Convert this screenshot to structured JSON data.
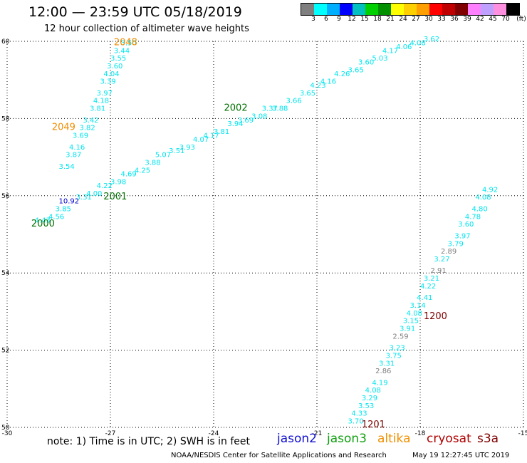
{
  "header": {
    "title": "12:00 — 23:59 UTC 05/18/2019",
    "subtitle": "12 hour collection of altimeter wave heights"
  },
  "legend": {
    "colors": [
      "#7f7f7f",
      "#00ffff",
      "#00b0ff",
      "#0000ff",
      "#00c0c0",
      "#00d000",
      "#009000",
      "#ffff00",
      "#ffd000",
      "#ffa000",
      "#ff0000",
      "#c00000",
      "#800000",
      "#ff80ff",
      "#c0a0ff",
      "#ff90e0",
      "#000000"
    ],
    "labels": [
      "3",
      "6",
      "9",
      "12",
      "15",
      "18",
      "21",
      "24",
      "27",
      "30",
      "33",
      "36",
      "39",
      "42",
      "45",
      "70",
      "(ft)"
    ]
  },
  "map": {
    "lon_range": [
      -30,
      -15
    ],
    "lat_range": [
      50,
      60
    ],
    "lon_ticks": [
      "-30",
      "-27",
      "-24",
      "-21",
      "-18",
      "-15"
    ],
    "lat_ticks": [
      "50",
      "52",
      "54",
      "56",
      "58",
      "60"
    ],
    "tracks": [
      {
        "color": "#00e5ee",
        "points": [
          {
            "lon": -26.7,
            "lat": 59.9,
            "v": "3.50"
          },
          {
            "lon": -26.9,
            "lat": 59.7,
            "v": "3.44"
          },
          {
            "lon": -27.0,
            "lat": 59.5,
            "v": "3.55"
          },
          {
            "lon": -27.1,
            "lat": 59.3,
            "v": "3.60"
          },
          {
            "lon": -27.2,
            "lat": 59.1,
            "v": "4.04"
          },
          {
            "lon": -27.3,
            "lat": 58.9,
            "v": "3.39"
          },
          {
            "lon": -27.4,
            "lat": 58.6,
            "v": "3.97"
          },
          {
            "lon": -27.5,
            "lat": 58.4,
            "v": "4.18"
          },
          {
            "lon": -27.6,
            "lat": 58.2,
            "v": "3.81"
          },
          {
            "lon": -27.8,
            "lat": 57.9,
            "v": "3.42"
          },
          {
            "lon": -27.9,
            "lat": 57.7,
            "v": "3.82"
          },
          {
            "lon": -28.1,
            "lat": 57.5,
            "v": "3.69"
          },
          {
            "lon": -28.2,
            "lat": 57.2,
            "v": "4.16"
          },
          {
            "lon": -28.3,
            "lat": 57.0,
            "v": "3.87"
          },
          {
            "lon": -28.5,
            "lat": 56.7,
            "v": "3.54"
          }
        ]
      },
      {
        "color": "#00e5ee",
        "points": [
          {
            "lon": -29.2,
            "lat": 55.3,
            "v": "4.43"
          },
          {
            "lon": -28.8,
            "lat": 55.4,
            "v": "4.56"
          },
          {
            "lon": -28.6,
            "lat": 55.6,
            "v": "3.85"
          },
          {
            "lon": -28.0,
            "lat": 55.9,
            "v": "3.31"
          },
          {
            "lon": -27.7,
            "lat": 56.0,
            "v": "4.00"
          },
          {
            "lon": -27.4,
            "lat": 56.2,
            "v": "4.22"
          },
          {
            "lon": -27.0,
            "lat": 56.3,
            "v": "3.98"
          },
          {
            "lon": -26.7,
            "lat": 56.5,
            "v": "4.69"
          },
          {
            "lon": -26.3,
            "lat": 56.6,
            "v": "4.25"
          },
          {
            "lon": -26.0,
            "lat": 56.8,
            "v": "3.88"
          },
          {
            "lon": -25.7,
            "lat": 57.0,
            "v": "5.07"
          },
          {
            "lon": -25.3,
            "lat": 57.1,
            "v": "3.51"
          },
          {
            "lon": -25.0,
            "lat": 57.2,
            "v": "3.93"
          },
          {
            "lon": -24.6,
            "lat": 57.4,
            "v": "4.07"
          },
          {
            "lon": -24.3,
            "lat": 57.5,
            "v": "4.17"
          },
          {
            "lon": -24.0,
            "lat": 57.6,
            "v": "3.81"
          },
          {
            "lon": -23.6,
            "lat": 57.8,
            "v": "3.94"
          },
          {
            "lon": -23.3,
            "lat": 57.9,
            "v": "3.69"
          },
          {
            "lon": -22.9,
            "lat": 58.0,
            "v": "3.08"
          },
          {
            "lon": -22.6,
            "lat": 58.2,
            "v": "3.37"
          },
          {
            "lon": -22.3,
            "lat": 58.2,
            "v": "3.88"
          },
          {
            "lon": -21.9,
            "lat": 58.4,
            "v": "3.66"
          },
          {
            "lon": -21.5,
            "lat": 58.6,
            "v": "3.65"
          },
          {
            "lon": -21.2,
            "lat": 58.8,
            "v": "4.23"
          },
          {
            "lon": -20.9,
            "lat": 58.9,
            "v": "4.16"
          },
          {
            "lon": -20.5,
            "lat": 59.1,
            "v": "4.26"
          },
          {
            "lon": -20.1,
            "lat": 59.2,
            "v": "3.65"
          },
          {
            "lon": -19.8,
            "lat": 59.4,
            "v": "3.60"
          },
          {
            "lon": -19.4,
            "lat": 59.5,
            "v": "5.03"
          },
          {
            "lon": -19.1,
            "lat": 59.7,
            "v": "4.17"
          },
          {
            "lon": -18.7,
            "lat": 59.8,
            "v": "4.06"
          },
          {
            "lon": -18.3,
            "lat": 59.9,
            "v": "4.08"
          },
          {
            "lon": -17.9,
            "lat": 60.0,
            "v": "3.62"
          }
        ]
      },
      {
        "color": "#00e5ee",
        "points": [
          {
            "lon": -16.2,
            "lat": 56.1,
            "v": "4.92"
          },
          {
            "lon": -16.4,
            "lat": 55.9,
            "v": "4.08"
          },
          {
            "lon": -16.5,
            "lat": 55.6,
            "v": "4.80"
          },
          {
            "lon": -16.7,
            "lat": 55.4,
            "v": "4.78"
          },
          {
            "lon": -16.9,
            "lat": 55.2,
            "v": "3.60"
          },
          {
            "lon": -17.0,
            "lat": 54.9,
            "v": "3.97"
          },
          {
            "lon": -17.2,
            "lat": 54.7,
            "v": "3.79"
          },
          {
            "lon": -17.4,
            "lat": 54.5,
            "v": "2.89"
          },
          {
            "lon": -17.6,
            "lat": 54.3,
            "v": "3.27"
          },
          {
            "lon": -17.7,
            "lat": 54.0,
            "v": "2.91"
          },
          {
            "lon": -17.9,
            "lat": 53.8,
            "v": "3.21"
          },
          {
            "lon": -18.0,
            "lat": 53.6,
            "v": "4.22"
          },
          {
            "lon": -18.1,
            "lat": 53.3,
            "v": "4.41"
          },
          {
            "lon": -18.3,
            "lat": 53.1,
            "v": "3.14"
          },
          {
            "lon": -18.4,
            "lat": 52.9,
            "v": "4.08"
          },
          {
            "lon": -18.5,
            "lat": 52.7,
            "v": "3.15"
          },
          {
            "lon": -18.6,
            "lat": 52.5,
            "v": "3.91"
          },
          {
            "lon": -18.8,
            "lat": 52.3,
            "v": "2.59"
          },
          {
            "lon": -18.9,
            "lat": 52.0,
            "v": "3.23"
          },
          {
            "lon": -19.0,
            "lat": 51.8,
            "v": "3.75"
          },
          {
            "lon": -19.2,
            "lat": 51.6,
            "v": "3.31"
          },
          {
            "lon": -19.3,
            "lat": 51.4,
            "v": "2.86"
          },
          {
            "lon": -19.4,
            "lat": 51.1,
            "v": "4.19"
          },
          {
            "lon": -19.6,
            "lat": 50.9,
            "v": "4.08"
          },
          {
            "lon": -19.7,
            "lat": 50.7,
            "v": "3.29"
          },
          {
            "lon": -19.8,
            "lat": 50.5,
            "v": "3.53"
          },
          {
            "lon": -20.0,
            "lat": 50.3,
            "v": "4.33"
          },
          {
            "lon": -20.1,
            "lat": 50.1,
            "v": "3.70"
          }
        ]
      }
    ],
    "special_points": [
      {
        "lon": -28.5,
        "lat": 55.8,
        "v": "10.92",
        "color": "#0000cc"
      }
    ],
    "time_labels": [
      {
        "lon": -26.9,
        "lat": 59.9,
        "text": "2048",
        "color": "#f08c00"
      },
      {
        "lon": -28.7,
        "lat": 57.7,
        "text": "2049",
        "color": "#f08c00"
      },
      {
        "lon": -27.2,
        "lat": 55.9,
        "text": "2001",
        "color": "#007000"
      },
      {
        "lon": -29.3,
        "lat": 55.2,
        "text": "2000",
        "color": "#007000"
      },
      {
        "lon": -23.7,
        "lat": 58.2,
        "text": "2002",
        "color": "#007000"
      },
      {
        "lon": -17.9,
        "lat": 52.8,
        "text": "1200",
        "color": "#7a0000"
      },
      {
        "lon": -19.7,
        "lat": 50.0,
        "text": "1201",
        "color": "#7a0000"
      }
    ]
  },
  "footer": {
    "note": "note: 1) Time is in UTC; 2) SWH is in feet",
    "satellites": [
      {
        "name": "jason2",
        "color": "#1010d0"
      },
      {
        "name": "jason3",
        "color": "#10a010"
      },
      {
        "name": "altika",
        "color": "#f09000"
      },
      {
        "name": "cryosat",
        "color": "#b00000"
      },
      {
        "name": "s3a",
        "color": "#800000"
      }
    ],
    "credit": "NOAA/NESDIS Center for Satellite Applications and Research",
    "timestamp": "May 19 12:27:45 UTC 2019"
  }
}
